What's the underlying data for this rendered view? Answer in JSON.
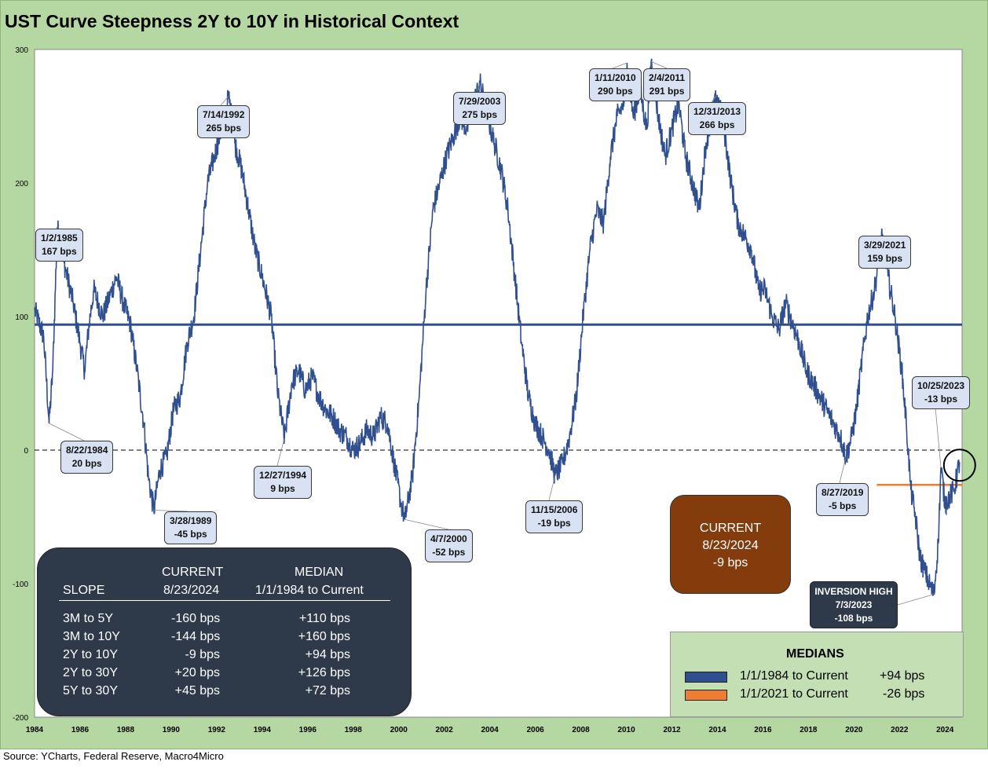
{
  "title": "UST Curve Steepness 2Y to 10Y in Historical Context",
  "source": "Source: YCharts, Federal Reserve, Macro4Micro",
  "colors": {
    "series": "#2f4f8f",
    "median_all": "#2f4f8f",
    "median_2021": "#ed7d31",
    "frame": "#b5d7a1"
  },
  "chart_data": {
    "type": "line",
    "title": "UST Curve Steepness 2Y to 10Y in Historical Context",
    "xlabel": "",
    "ylabel": "",
    "xlim": [
      1984.0,
      2024.75
    ],
    "ylim": [
      -200,
      300
    ],
    "y_ticks": [
      "300",
      "200",
      "100",
      "0",
      "-100",
      "-200"
    ],
    "x_ticks": [
      "1984",
      "1986",
      "1988",
      "1990",
      "1992",
      "1994",
      "1996",
      "1998",
      "2000",
      "2002",
      "2004",
      "2006",
      "2008",
      "2010",
      "2012",
      "2014",
      "2016",
      "2018",
      "2020",
      "2022",
      "2024"
    ],
    "grid": false,
    "legend": "none",
    "series": [
      {
        "x": [
          1984.0,
          1984.4,
          1984.64,
          1984.8,
          1985.0,
          1985.3,
          1985.7,
          1986.0,
          1986.2,
          1986.4,
          1986.6,
          1986.8,
          1987.0,
          1987.3,
          1987.6,
          1987.9,
          1988.2,
          1988.5,
          1988.8,
          1989.0,
          1989.24,
          1989.5,
          1989.8,
          1990.1,
          1990.4,
          1990.7,
          1991.0,
          1991.3,
          1991.6,
          1991.9,
          1992.2,
          1992.53,
          1992.8,
          1993.1,
          1993.4,
          1993.7,
          1994.0,
          1994.4,
          1994.7,
          1994.98,
          1995.3,
          1995.6,
          1995.9,
          1996.2,
          1996.5,
          1996.8,
          1997.1,
          1997.4,
          1997.7,
          1998.0,
          1998.3,
          1998.6,
          1998.9,
          1999.2,
          1999.5,
          1999.8,
          2000.1,
          2000.27,
          2000.6,
          2000.9,
          2001.2,
          2001.5,
          2001.8,
          2002.1,
          2002.4,
          2002.7,
          2003.0,
          2003.3,
          2003.57,
          2003.9,
          2004.2,
          2004.5,
          2004.8,
          2005.1,
          2005.4,
          2005.7,
          2006.0,
          2006.3,
          2006.6,
          2006.87,
          2007.2,
          2007.5,
          2007.8,
          2008.1,
          2008.4,
          2008.7,
          2009.0,
          2009.3,
          2009.6,
          2009.9,
          2010.03,
          2010.3,
          2010.6,
          2010.9,
          2011.09,
          2011.4,
          2011.7,
          2012.0,
          2012.3,
          2012.6,
          2012.9,
          2013.2,
          2013.5,
          2013.99,
          2014.3,
          2014.6,
          2014.9,
          2015.2,
          2015.5,
          2015.8,
          2016.1,
          2016.4,
          2016.7,
          2017.0,
          2017.3,
          2017.6,
          2017.9,
          2018.2,
          2018.5,
          2018.8,
          2019.1,
          2019.4,
          2019.65,
          2019.9,
          2020.1,
          2020.3,
          2020.6,
          2020.9,
          2021.24,
          2021.5,
          2021.8,
          2022.1,
          2022.3,
          2022.5,
          2022.7,
          2022.9,
          2023.1,
          2023.3,
          2023.51,
          2023.7,
          2023.82,
          2024.0,
          2024.2,
          2024.4,
          2024.64
        ],
        "y": [
          105,
          85,
          20,
          60,
          167,
          140,
          110,
          80,
          60,
          95,
          120,
          110,
          100,
          115,
          130,
          110,
          95,
          60,
          20,
          -20,
          -45,
          -15,
          -5,
          30,
          40,
          80,
          100,
          150,
          200,
          220,
          240,
          265,
          230,
          210,
          180,
          150,
          130,
          100,
          40,
          9,
          50,
          60,
          45,
          55,
          40,
          30,
          25,
          15,
          10,
          0,
          5,
          15,
          10,
          25,
          20,
          -10,
          -40,
          -52,
          -20,
          40,
          120,
          180,
          200,
          220,
          235,
          250,
          240,
          260,
          275,
          250,
          230,
          210,
          180,
          130,
          80,
          40,
          20,
          10,
          0,
          -19,
          -10,
          10,
          40,
          100,
          150,
          180,
          170,
          220,
          250,
          260,
          290,
          250,
          270,
          240,
          291,
          250,
          220,
          240,
          260,
          220,
          200,
          180,
          230,
          266,
          240,
          200,
          170,
          160,
          150,
          120,
          120,
          100,
          90,
          110,
          95,
          80,
          60,
          50,
          40,
          30,
          20,
          10,
          -5,
          10,
          30,
          60,
          100,
          120,
          159,
          130,
          100,
          60,
          20,
          -30,
          -50,
          -80,
          -90,
          -100,
          -108,
          -70,
          -13,
          -40,
          -35,
          -30,
          -9
        ]
      }
    ],
    "median_lines": [
      {
        "label": "1/1/1984 to Current",
        "value": 94,
        "x_start": 1984.0,
        "x_end": 2024.75
      },
      {
        "label": "1/1/2021 to Current",
        "value": -26,
        "x_start": 2021.0,
        "x_end": 2024.75
      }
    ],
    "annotations": [
      {
        "date": "1/2/1985",
        "text": "167 bps",
        "x": 1985.0,
        "y": 167
      },
      {
        "date": "8/22/1984",
        "text": "20 bps",
        "x": 1984.64,
        "y": 20
      },
      {
        "date": "3/28/1989",
        "text": "-45 bps",
        "x": 1989.24,
        "y": -45
      },
      {
        "date": "7/14/1992",
        "text": "265 bps",
        "x": 1992.53,
        "y": 265
      },
      {
        "date": "12/27/1994",
        "text": "9 bps",
        "x": 1994.98,
        "y": 9
      },
      {
        "date": "4/7/2000",
        "text": "-52 bps",
        "x": 2000.27,
        "y": -52
      },
      {
        "date": "7/29/2003",
        "text": "275 bps",
        "x": 2003.57,
        "y": 275
      },
      {
        "date": "11/15/2006",
        "text": "-19 bps",
        "x": 2006.87,
        "y": -19
      },
      {
        "date": "1/11/2010",
        "text": "290 bps",
        "x": 2010.03,
        "y": 290
      },
      {
        "date": "2/4/2011",
        "text": "291 bps",
        "x": 2011.09,
        "y": 291
      },
      {
        "date": "12/31/2013",
        "text": "266 bps",
        "x": 2013.99,
        "y": 266
      },
      {
        "date": "8/27/2019",
        "text": "-5 bps",
        "x": 2019.65,
        "y": -5
      },
      {
        "date": "3/29/2021",
        "text": "159 bps",
        "x": 2021.24,
        "y": 159
      },
      {
        "date": "10/25/2023",
        "text": "-13 bps",
        "x": 2023.82,
        "y": -13
      }
    ],
    "inversion_high": {
      "title": "INVERSION HIGH",
      "date": "7/3/2023",
      "text": "-108 bps",
      "x": 2023.51,
      "y": -108
    },
    "current": {
      "title": "CURRENT",
      "date": "8/23/2024",
      "text": "-9 bps",
      "x": 2024.64,
      "y": -9
    }
  },
  "slope_table": {
    "header_current": "CURRENT",
    "header_current_date": "8/23/2024",
    "header_median": "MEDIAN",
    "header_median_range": "1/1/1984 to Current",
    "header_slope": "SLOPE",
    "rows": [
      {
        "label": "3M to 5Y",
        "current": "-160 bps",
        "median": "+110 bps"
      },
      {
        "label": "3M to 10Y",
        "current": "-144 bps",
        "median": "+160 bps"
      },
      {
        "label": "2Y to 10Y",
        "current": "-9 bps",
        "median": "+94 bps"
      },
      {
        "label": "2Y to 30Y",
        "current": "+20 bps",
        "median": "+126 bps"
      },
      {
        "label": "5Y to 30Y",
        "current": "+45 bps",
        "median": "+72 bps"
      }
    ]
  },
  "medians_legend": {
    "title": "MEDIANS",
    "items": [
      {
        "label": "1/1/1984 to Current",
        "value": "+94 bps"
      },
      {
        "label": "1/1/2021 to Current",
        "value": "-26 bps"
      }
    ]
  }
}
